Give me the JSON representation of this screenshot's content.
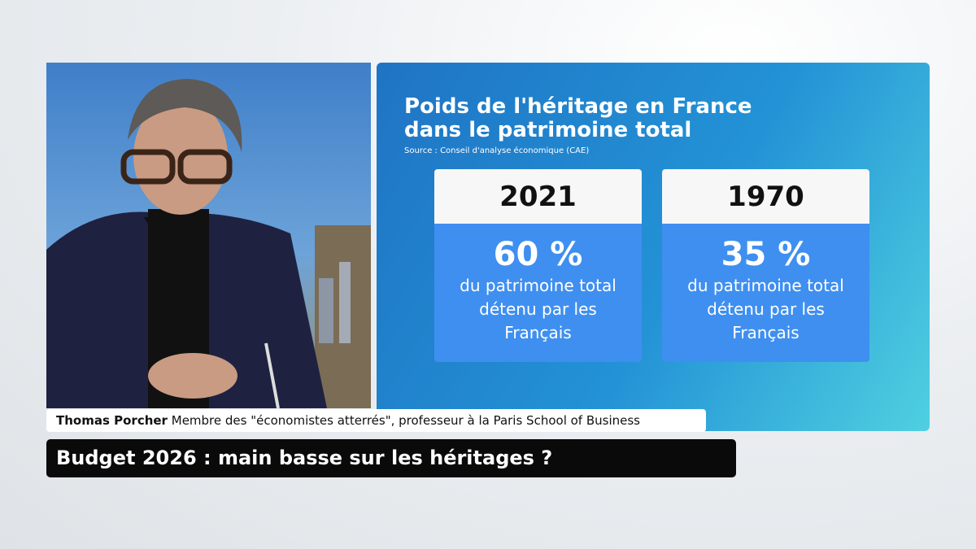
{
  "graphic": {
    "title": "Poids de l'héritage en France dans le patrimoine total",
    "source": "Source : Conseil d'analyse économique (CAE)",
    "cards": [
      {
        "year": "2021",
        "value": "60 %",
        "caption": "du patrimoine total détenu par les Français"
      },
      {
        "year": "1970",
        "value": "35 %",
        "caption": "du patrimoine total détenu par les Français"
      }
    ]
  },
  "lower_third": {
    "name": "Thomas Porcher",
    "role": "Membre des \"économistes atterrés\", professeur à la Paris School of Business"
  },
  "headline": "Budget 2026 : main basse sur les héritages ?"
}
